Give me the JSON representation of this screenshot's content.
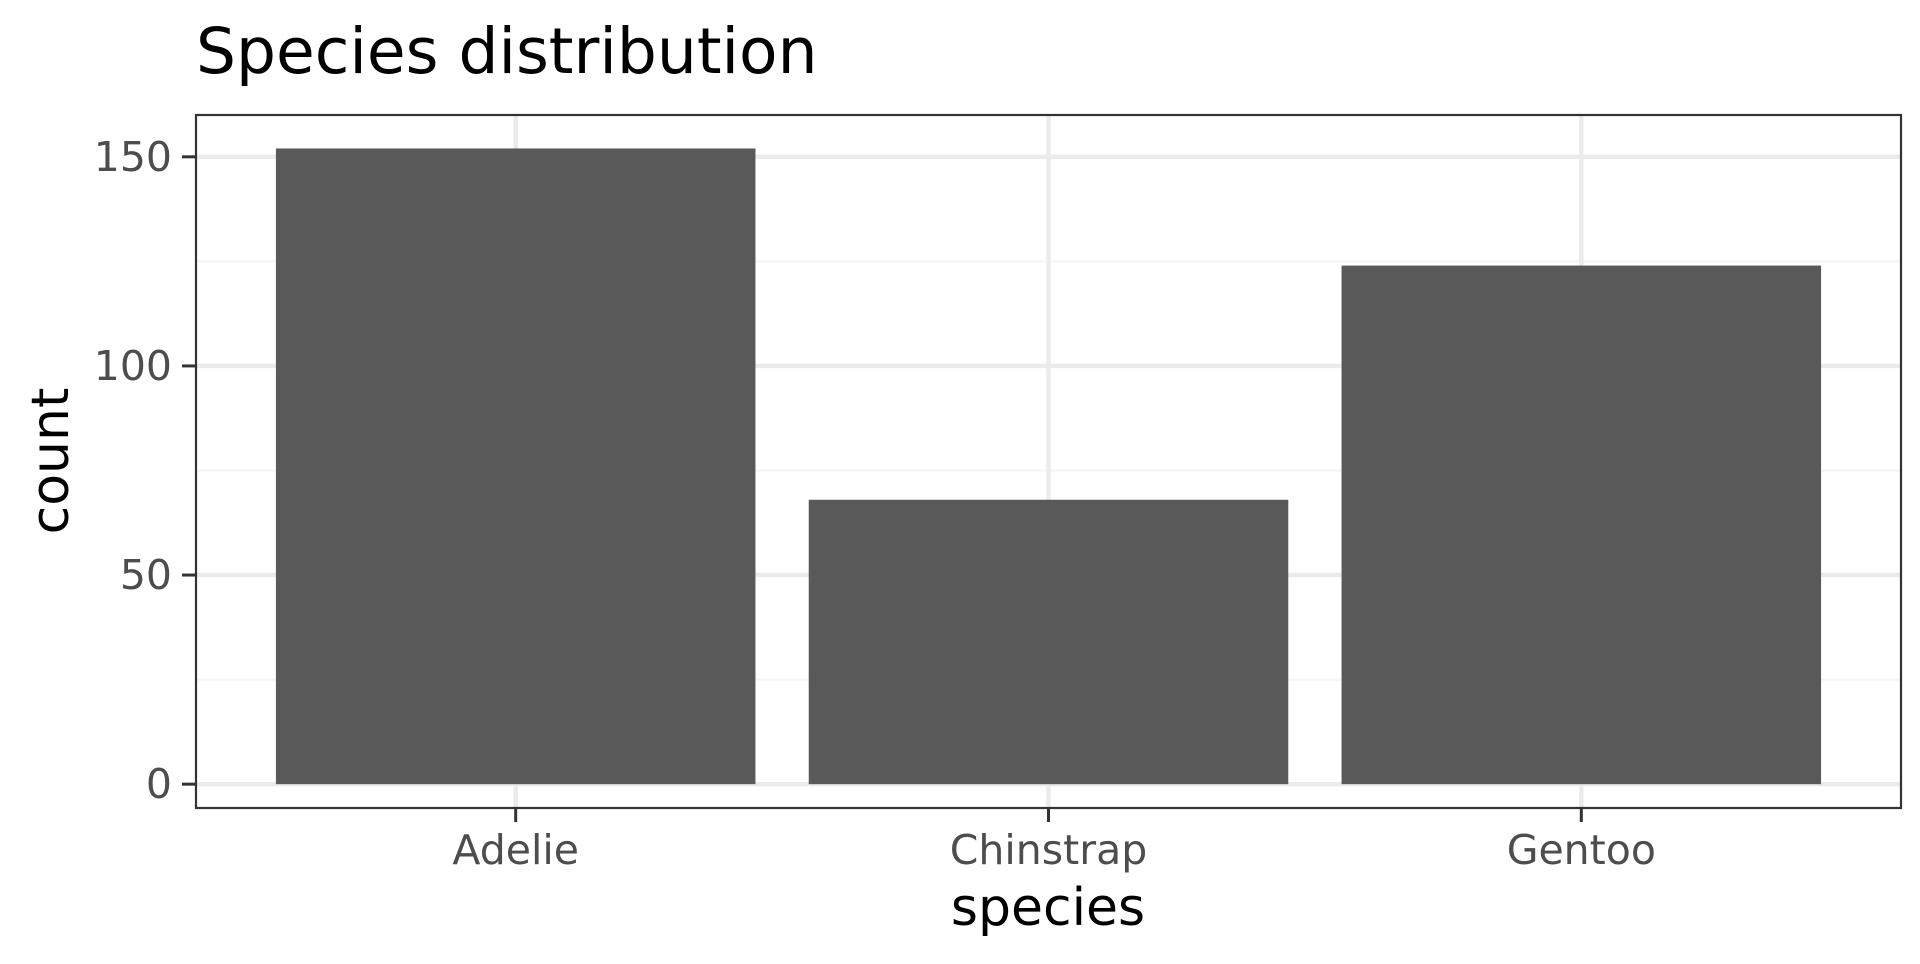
{
  "chart_data": {
    "type": "bar",
    "title": "Species distribution",
    "xlabel": "species",
    "ylabel": "count",
    "categories": [
      "Adelie",
      "Chinstrap",
      "Gentoo"
    ],
    "values": [
      152,
      68,
      124
    ],
    "ylim": [
      -5.7,
      160
    ],
    "yticks": [
      0,
      50,
      100,
      150
    ],
    "ytick_labels": [
      "0",
      "50",
      "100",
      "150"
    ],
    "grid": true,
    "bar_color": "#595959",
    "panel_border_color": "#333333",
    "grid_major_color": "#ebebeb",
    "grid_minor_color": "#f5f5f5",
    "tick_label_color": "#4d4d4d"
  }
}
